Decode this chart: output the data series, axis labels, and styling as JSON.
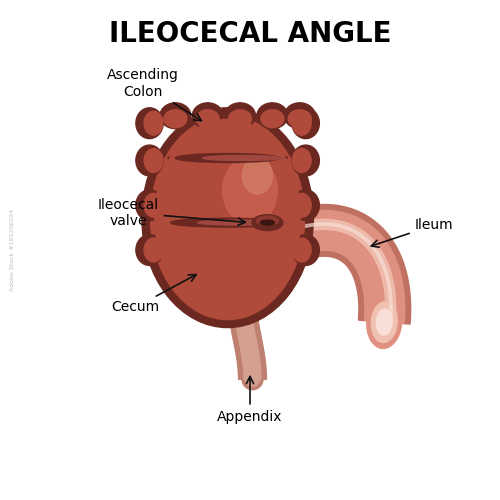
{
  "title": "ILEOCECAL ANGLE",
  "title_fontsize": 20,
  "title_fontweight": "bold",
  "background_color": "#ffffff",
  "body_dark": "#7a3028",
  "body_mid": "#b04a3a",
  "body_light": "#c96050",
  "body_highlight": "#d4846a",
  "body_shine": "#e0a090",
  "ileum_outer": "#c07060",
  "ileum_mid": "#e09080",
  "ileum_light": "#f0c0b0",
  "ileum_shine": "#f8e0d8",
  "appendix_outer": "#c08070",
  "appendix_mid": "#d4a090",
  "valve_dark": "#6a2820",
  "valve_shadow": "#8a3830",
  "haustra_dark": "#6a2820",
  "labels": {
    "ascending_colon": "Ascending\nColon",
    "ileocecal_valve": "Ileocecal\nvalve",
    "ileum": "Ileum",
    "cecum": "Cecum",
    "appendix": "Appendix"
  },
  "label_fontsize": 10,
  "arrow_color": "#111111",
  "watermark": "Adobe Stock #195206294"
}
